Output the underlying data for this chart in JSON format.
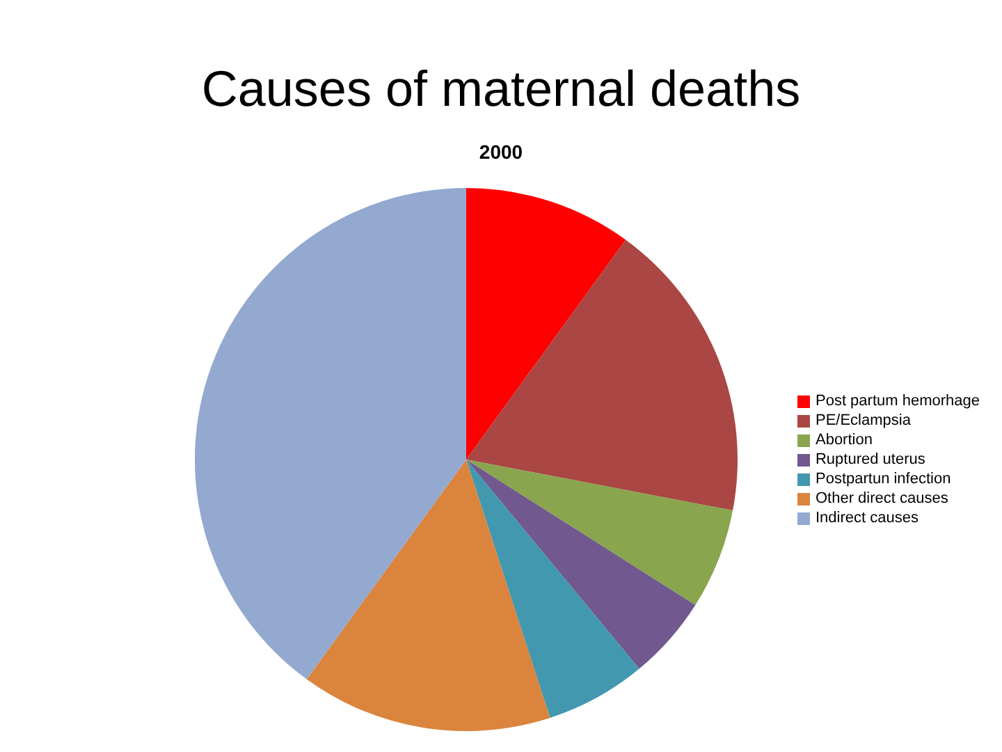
{
  "chart_data": {
    "type": "pie",
    "title": "Causes of maternal deaths",
    "subtitle": "2000",
    "categories": [
      "Post partum hemorhage",
      "PE/Eclampsia",
      "Abortion",
      "Ruptured uterus",
      "Postpartun infection",
      "Other direct causes",
      "Indirect causes"
    ],
    "values": [
      10,
      18,
      6,
      5,
      6,
      15,
      40
    ],
    "colors": [
      "#ff0000",
      "#aa4643",
      "#89a54e",
      "#71588f",
      "#4198af",
      "#db843d",
      "#93a9cf"
    ],
    "legend": "right"
  }
}
